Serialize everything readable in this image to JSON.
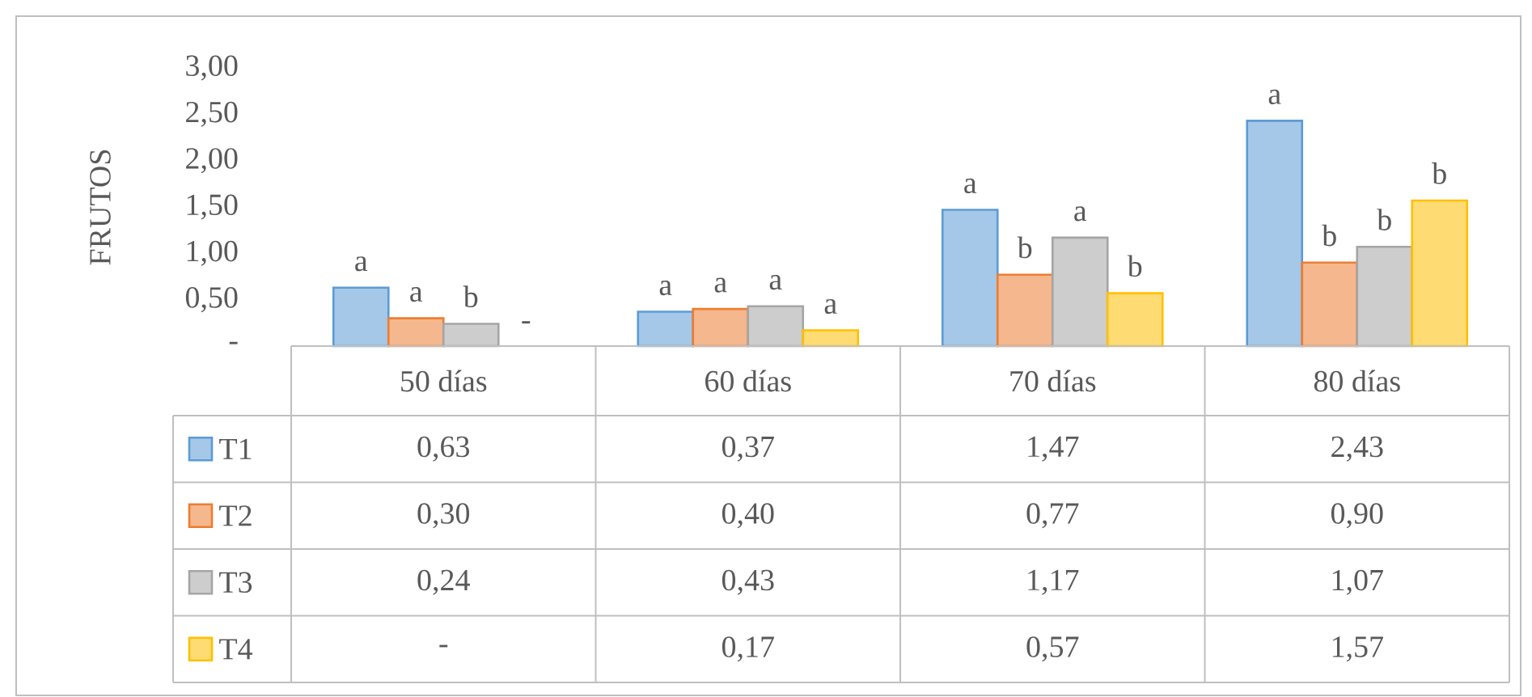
{
  "chart_data": {
    "type": "bar",
    "ylabel": "FRUTOS",
    "categories": [
      "50 días",
      "60 días",
      "70 días",
      "80 días"
    ],
    "series": [
      {
        "name": "T1",
        "color": "#5b9bd5",
        "values": [
          0.63,
          0.37,
          1.47,
          2.43
        ],
        "value_labels": [
          "0,63",
          "0,37",
          "1,47",
          "2,43"
        ]
      },
      {
        "name": "T2",
        "color": "#ed7d31",
        "values": [
          0.3,
          0.4,
          0.77,
          0.9
        ],
        "value_labels": [
          "0,30",
          "0,40",
          "0,77",
          "0,90"
        ]
      },
      {
        "name": "T3",
        "color": "#a5a5a5",
        "values": [
          0.24,
          0.43,
          1.17,
          1.07
        ],
        "value_labels": [
          "0,24",
          "0,43",
          "1,17",
          "1,07"
        ]
      },
      {
        "name": "T4",
        "color": "#ffc000",
        "values": [
          null,
          0.17,
          0.57,
          1.57
        ],
        "value_labels": [
          "-",
          "0,17",
          "0,57",
          "1,57"
        ]
      }
    ],
    "annotations": [
      "a",
      "a",
      "b",
      "-",
      "a",
      "a",
      "a",
      "a",
      "a",
      "b",
      "a",
      "b",
      "a",
      "b",
      "b",
      "b"
    ],
    "ylim": [
      0,
      3
    ],
    "yticks": [
      {
        "value": 0,
        "label": "-"
      },
      {
        "value": 0.5,
        "label": "0,50"
      },
      {
        "value": 1,
        "label": "1,00"
      },
      {
        "value": 1.5,
        "label": "1,50"
      },
      {
        "value": 2,
        "label": "2,00"
      },
      {
        "value": 2.5,
        "label": "2,50"
      },
      {
        "value": 3,
        "label": "3,00"
      }
    ],
    "legend": "bottom",
    "grid": false
  }
}
